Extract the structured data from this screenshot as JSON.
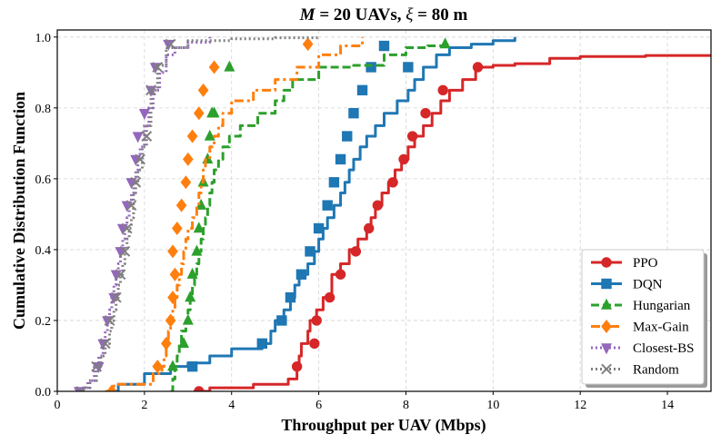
{
  "chart_data": {
    "type": "line",
    "title_parts": {
      "m_symbol": "M",
      "m_rest": " = 20 UAVs, ",
      "xi_symbol": "ξ",
      "xi_rest": " = 80 m"
    },
    "xlabel": "Throughput per UAV (Mbps)",
    "ylabel": "Cumulative Distribution Function",
    "xlim": [
      0,
      15
    ],
    "ylim": [
      0,
      1.02
    ],
    "xticks": [
      0,
      2,
      4,
      6,
      8,
      10,
      12,
      14
    ],
    "yticks": [
      0.0,
      0.2,
      0.4,
      0.6,
      0.8,
      1.0
    ],
    "xtick_labels": [
      "0",
      "2",
      "4",
      "6",
      "8",
      "10",
      "12",
      "14"
    ],
    "ytick_labels": [
      "0.0",
      "0.2",
      "0.4",
      "0.6",
      "0.8",
      "1.0"
    ],
    "grid": true,
    "legend_position": "bottom-right",
    "series": [
      {
        "name": "PPO",
        "color": "#d62728",
        "marker": "circle",
        "dash": "solid",
        "x": [
          3.2,
          3.5,
          4.5,
          5.3,
          5.5,
          5.55,
          5.6,
          5.75,
          5.8,
          5.95,
          6.1,
          6.3,
          6.5,
          6.7,
          6.9,
          7.1,
          7.2,
          7.3,
          7.45,
          7.6,
          7.75,
          7.9,
          8.05,
          8.2,
          8.4,
          8.6,
          8.8,
          9.0,
          9.3,
          9.6,
          10.0,
          10.5,
          11.3,
          12.0,
          13.5,
          15.0
        ],
        "y": [
          0.0,
          0.01,
          0.02,
          0.035,
          0.07,
          0.1,
          0.135,
          0.17,
          0.2,
          0.23,
          0.265,
          0.33,
          0.36,
          0.4,
          0.43,
          0.46,
          0.49,
          0.525,
          0.56,
          0.59,
          0.625,
          0.655,
          0.69,
          0.72,
          0.75,
          0.785,
          0.82,
          0.85,
          0.88,
          0.915,
          0.92,
          0.925,
          0.94,
          0.945,
          0.948,
          0.95
        ],
        "marker_x": [
          3.25,
          5.5,
          5.9,
          5.95,
          6.25,
          6.5,
          6.85,
          7.15,
          7.35,
          7.7,
          7.95,
          8.15,
          8.45,
          8.85,
          9.65
        ],
        "marker_y": [
          0.0,
          0.07,
          0.135,
          0.2,
          0.265,
          0.33,
          0.395,
          0.46,
          0.525,
          0.59,
          0.655,
          0.72,
          0.785,
          0.85,
          0.915
        ]
      },
      {
        "name": "DQN",
        "color": "#1f77b4",
        "marker": "square",
        "dash": "solid",
        "x": [
          1.35,
          1.4,
          2.0,
          2.6,
          3.0,
          3.5,
          4.0,
          4.7,
          4.9,
          5.0,
          5.2,
          5.35,
          5.45,
          5.55,
          5.75,
          5.9,
          6.0,
          6.1,
          6.2,
          6.35,
          6.5,
          6.6,
          6.7,
          6.8,
          6.95,
          7.1,
          7.3,
          7.5,
          7.8,
          8.05,
          8.2,
          8.4,
          8.7,
          9.0,
          9.5,
          10.0,
          10.5
        ],
        "y": [
          0.0,
          0.02,
          0.05,
          0.07,
          0.08,
          0.1,
          0.12,
          0.135,
          0.17,
          0.2,
          0.23,
          0.265,
          0.3,
          0.33,
          0.36,
          0.395,
          0.43,
          0.46,
          0.49,
          0.525,
          0.56,
          0.59,
          0.625,
          0.655,
          0.69,
          0.72,
          0.75,
          0.785,
          0.82,
          0.85,
          0.88,
          0.915,
          0.95,
          0.97,
          0.98,
          0.99,
          1.0
        ],
        "marker_x": [
          3.1,
          4.7,
          5.15,
          5.35,
          5.6,
          5.8,
          6.0,
          6.2,
          6.35,
          6.5,
          6.65,
          6.8,
          7.0,
          7.2,
          7.5,
          8.05
        ],
        "marker_y": [
          0.07,
          0.135,
          0.2,
          0.265,
          0.33,
          0.395,
          0.46,
          0.525,
          0.59,
          0.655,
          0.72,
          0.785,
          0.85,
          0.915,
          0.975,
          0.915
        ]
      },
      {
        "name": "Hungarian",
        "color": "#2ca02c",
        "marker": "triangle-up",
        "dash": "dashed",
        "x": [
          2.6,
          2.65,
          2.7,
          2.75,
          2.8,
          2.85,
          2.95,
          3.0,
          3.05,
          3.1,
          3.15,
          3.2,
          3.25,
          3.3,
          3.35,
          3.4,
          3.45,
          3.5,
          3.55,
          3.6,
          3.7,
          3.8,
          3.95,
          4.2,
          4.6,
          5.0,
          5.2,
          5.4,
          6.0,
          6.8,
          7.5,
          8.0,
          8.5,
          9.0
        ],
        "y": [
          0.0,
          0.035,
          0.07,
          0.1,
          0.135,
          0.17,
          0.2,
          0.23,
          0.265,
          0.3,
          0.33,
          0.36,
          0.395,
          0.43,
          0.46,
          0.49,
          0.525,
          0.56,
          0.59,
          0.625,
          0.655,
          0.69,
          0.72,
          0.75,
          0.785,
          0.82,
          0.85,
          0.88,
          0.915,
          0.92,
          0.95,
          0.97,
          0.975,
          0.98
        ],
        "marker_x": [
          2.65,
          2.9,
          3.0,
          3.05,
          3.1,
          3.2,
          3.25,
          3.3,
          3.35,
          3.45,
          3.5,
          3.55,
          3.6,
          3.95,
          8.9
        ],
        "marker_y": [
          0.07,
          0.135,
          0.2,
          0.265,
          0.33,
          0.395,
          0.46,
          0.525,
          0.59,
          0.655,
          0.72,
          0.785,
          0.785,
          0.915,
          0.98
        ]
      },
      {
        "name": "Max-Gain",
        "color": "#ff7f0e",
        "marker": "diamond",
        "dash": "dashdot",
        "x": [
          1.1,
          1.3,
          2.2,
          2.4,
          2.45,
          2.5,
          2.55,
          2.6,
          2.65,
          2.7,
          2.75,
          2.8,
          2.85,
          2.9,
          2.95,
          3.0,
          3.1,
          3.2,
          3.25,
          3.3,
          3.35,
          3.4,
          3.5,
          3.6,
          3.7,
          3.8,
          4.0,
          4.5,
          5.0,
          5.5,
          6.0,
          6.5,
          7.0
        ],
        "y": [
          0.0,
          0.02,
          0.05,
          0.07,
          0.1,
          0.135,
          0.17,
          0.2,
          0.23,
          0.265,
          0.3,
          0.33,
          0.36,
          0.395,
          0.43,
          0.46,
          0.49,
          0.525,
          0.56,
          0.59,
          0.625,
          0.655,
          0.69,
          0.72,
          0.75,
          0.785,
          0.82,
          0.85,
          0.88,
          0.915,
          0.95,
          0.975,
          1.0
        ],
        "marker_x": [
          1.25,
          2.3,
          2.5,
          2.6,
          2.65,
          2.7,
          2.65,
          2.75,
          2.85,
          2.95,
          3.0,
          3.1,
          3.25,
          3.35,
          3.6,
          5.75
        ],
        "marker_y": [
          0.0,
          0.07,
          0.135,
          0.2,
          0.265,
          0.33,
          0.395,
          0.46,
          0.525,
          0.59,
          0.655,
          0.72,
          0.785,
          0.85,
          0.915,
          0.98
        ]
      },
      {
        "name": "Closest-BS",
        "color": "#9467bd",
        "marker": "triangle-down",
        "dash": "dotted",
        "x": [
          0.45,
          0.55,
          0.7,
          0.85,
          0.95,
          1.05,
          1.1,
          1.15,
          1.2,
          1.25,
          1.3,
          1.35,
          1.4,
          1.45,
          1.5,
          1.55,
          1.6,
          1.65,
          1.7,
          1.75,
          1.8,
          1.85,
          1.9,
          2.0,
          2.1,
          2.2,
          2.35,
          2.5,
          2.7,
          3.0,
          3.5
        ],
        "y": [
          0.0,
          0.01,
          0.03,
          0.07,
          0.1,
          0.135,
          0.17,
          0.2,
          0.23,
          0.265,
          0.3,
          0.33,
          0.36,
          0.4,
          0.43,
          0.46,
          0.49,
          0.525,
          0.56,
          0.59,
          0.625,
          0.655,
          0.69,
          0.75,
          0.8,
          0.85,
          0.9,
          0.95,
          0.97,
          0.985,
          1.0
        ],
        "marker_x": [
          0.5,
          0.95,
          1.05,
          1.15,
          1.3,
          1.35,
          1.45,
          1.5,
          1.6,
          1.7,
          1.8,
          1.85,
          2.0,
          2.15,
          2.25,
          2.55
        ],
        "marker_y": [
          0.0,
          0.07,
          0.135,
          0.2,
          0.265,
          0.33,
          0.395,
          0.46,
          0.525,
          0.59,
          0.655,
          0.72,
          0.785,
          0.85,
          0.915,
          0.98
        ]
      },
      {
        "name": "Random",
        "color": "#7f7f7f",
        "marker": "x",
        "dash": "dotted",
        "x": [
          0.5,
          0.6,
          0.75,
          0.9,
          1.0,
          1.1,
          1.2,
          1.25,
          1.3,
          1.35,
          1.4,
          1.45,
          1.5,
          1.55,
          1.6,
          1.65,
          1.7,
          1.75,
          1.8,
          1.85,
          1.95,
          2.05,
          2.15,
          2.3,
          2.5,
          3.0,
          4.0,
          5.0,
          6.0
        ],
        "y": [
          0.0,
          0.01,
          0.03,
          0.07,
          0.1,
          0.135,
          0.17,
          0.2,
          0.23,
          0.265,
          0.3,
          0.33,
          0.36,
          0.4,
          0.43,
          0.46,
          0.49,
          0.56,
          0.59,
          0.625,
          0.69,
          0.75,
          0.85,
          0.92,
          0.97,
          0.99,
          0.995,
          0.998,
          1.0
        ],
        "marker_x": [
          0.55,
          0.9,
          1.1,
          1.2,
          1.35,
          1.45,
          1.55,
          1.6,
          1.7,
          1.8,
          1.9,
          2.05,
          2.15,
          2.3,
          2.6
        ],
        "marker_y": [
          0.0,
          0.07,
          0.135,
          0.2,
          0.265,
          0.33,
          0.395,
          0.46,
          0.525,
          0.59,
          0.655,
          0.72,
          0.85,
          0.915,
          0.98
        ]
      }
    ]
  }
}
